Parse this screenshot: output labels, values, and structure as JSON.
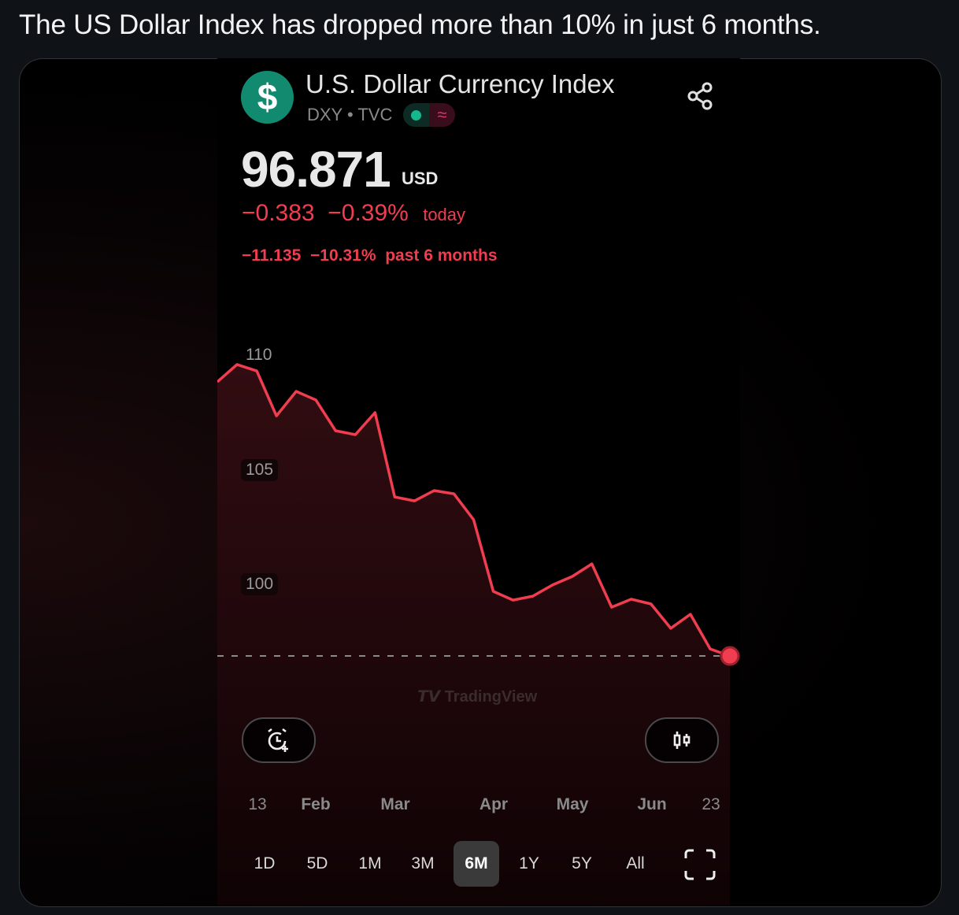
{
  "post": {
    "text": "The US Dollar Index has dropped more than 10% in just 6 months."
  },
  "instrument": {
    "logo_symbol": "$",
    "name": "U.S. Dollar Currency Index",
    "ticker_line": "DXY • TVC",
    "market_status_icon": "market-open-dot",
    "delayed_icon": "approx-icon",
    "price": "96.871",
    "currency": "USD",
    "change_today": "−0.383",
    "change_today_pct": "−0.39%",
    "change_today_label": "today",
    "change_6m": "−11.135",
    "change_6m_pct": "−10.31%",
    "change_6m_label": "past 6 months"
  },
  "colors": {
    "accent_down": "#f03d4f",
    "logo_bg": "#128a6f"
  },
  "watermark": "TradingView",
  "buttons": {
    "alert_icon": "alarm-plus-icon",
    "chart_type_icon": "candlestick-icon",
    "fullscreen_icon": "fullscreen-icon"
  },
  "chart_data": {
    "type": "area",
    "y_ticks": [
      "110",
      "105",
      "100"
    ],
    "x_ticks": [
      "13",
      "Feb",
      "Mar",
      "Apr",
      "May",
      "Jun",
      "23"
    ],
    "values": [
      108.83,
      109.59,
      109.31,
      107.35,
      108.42,
      108.04,
      106.7,
      106.53,
      107.49,
      103.81,
      103.64,
      104.09,
      103.95,
      102.82,
      99.69,
      99.31,
      99.48,
      99.97,
      100.34,
      100.89,
      99.0,
      99.35,
      99.14,
      98.08,
      98.69,
      97.18,
      96.87
    ],
    "last_value": 96.871,
    "reference_line": 96.871,
    "ylim": [
      95.5,
      110.7
    ],
    "grid": false,
    "line_color": "#f03d4f"
  },
  "ranges": {
    "items": [
      "1D",
      "5D",
      "1M",
      "3M",
      "6M",
      "1Y",
      "5Y",
      "All"
    ],
    "selected": "6M"
  }
}
